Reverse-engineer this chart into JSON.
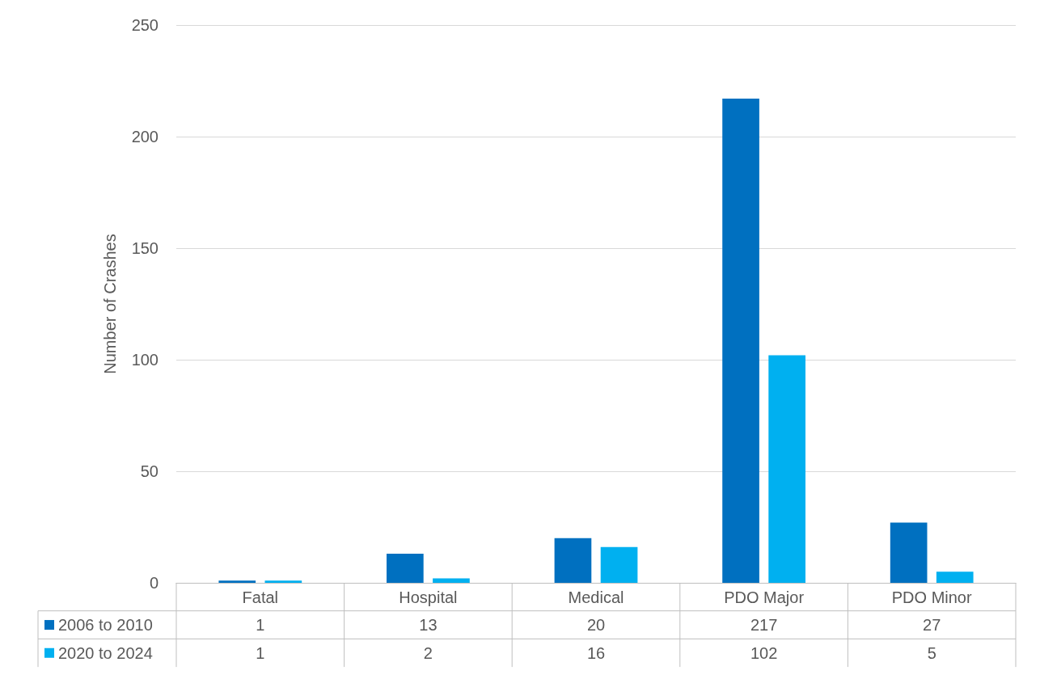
{
  "chart_data": {
    "type": "bar",
    "ylabel": "Number of Crashes",
    "categories": [
      "Fatal",
      "Hospital",
      "Medical",
      "PDO Major",
      "PDO Minor"
    ],
    "series": [
      {
        "name": "2006 to 2010",
        "color": "#0070c0",
        "values": [
          1,
          13,
          20,
          217,
          27
        ]
      },
      {
        "name": "2020 to 2024",
        "color": "#00b0f0",
        "values": [
          1,
          2,
          16,
          102,
          5
        ]
      }
    ],
    "ylim": [
      0,
      250
    ],
    "yticks": [
      0,
      50,
      100,
      150,
      200,
      250
    ],
    "grid": "y",
    "legend": "bottom",
    "data_labels": true
  }
}
